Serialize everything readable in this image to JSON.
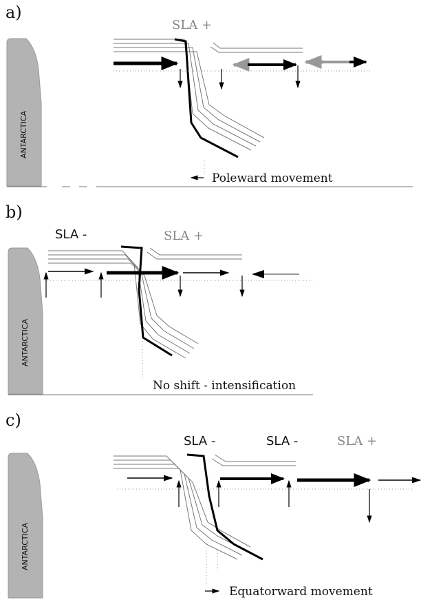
{
  "panels": [
    {
      "label": "a)",
      "sla": [
        "SLA +"
      ],
      "land": "ANTARCTICA",
      "caption": "Poleward movement"
    },
    {
      "label": "b)",
      "sla": [
        "SLA -",
        "SLA +"
      ],
      "land": "ANTARCTICA",
      "caption": "No shift - intensification"
    },
    {
      "label": "c)",
      "sla": [
        "SLA -",
        "SLA -",
        "SLA +"
      ],
      "land": "ANTARCTICA",
      "caption": "Equatorward movement"
    }
  ]
}
